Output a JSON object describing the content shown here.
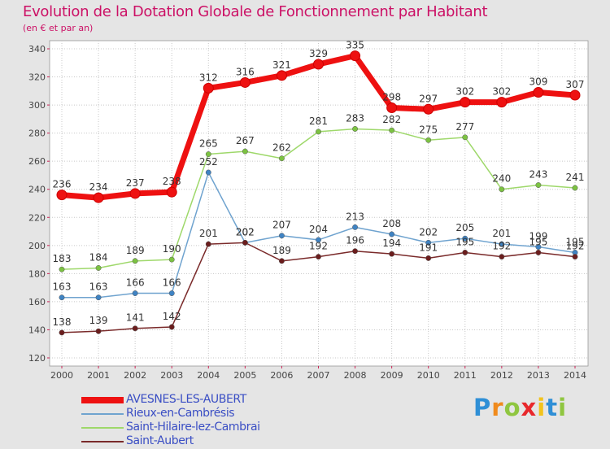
{
  "header": {
    "title": "Evolution de la Dotation Globale de Fonctionnement par Habitant",
    "subtitle": "(en € et par an)"
  },
  "brand": {
    "letters": [
      "P",
      "r",
      "o",
      "x",
      "i",
      "t",
      "i"
    ]
  },
  "chart_data": {
    "type": "line",
    "title": "Evolution de la Dotation Globale de Fonctionnement par Habitant",
    "subtitle": "(en € et par an)",
    "xlabel": "",
    "ylabel": "",
    "categories": [
      "2000",
      "2001",
      "2002",
      "2003",
      "2004",
      "2005",
      "2006",
      "2007",
      "2008",
      "2009",
      "2010",
      "2011",
      "2012",
      "2013",
      "2014"
    ],
    "yticks": [
      120,
      140,
      160,
      180,
      200,
      220,
      240,
      260,
      280,
      300,
      320,
      340
    ],
    "ylim": [
      120,
      340
    ],
    "grid": true,
    "legend_position": "bottom-left",
    "series": [
      {
        "name": "AVESNES-LES-AUBERT",
        "color": "#ee1111",
        "point_color": "#ee1111",
        "emphasis": "thick",
        "values": [
          236,
          234,
          237,
          238,
          312,
          316,
          321,
          329,
          335,
          298,
          297,
          302,
          302,
          309,
          307
        ]
      },
      {
        "name": "Rieux-en-Cambrésis",
        "color": "#6fa3cf",
        "point_color": "#3f83c3",
        "values": [
          163,
          163,
          166,
          166,
          252,
          202,
          207,
          204,
          213,
          208,
          202,
          205,
          201,
          199,
          195
        ]
      },
      {
        "name": "Saint-Hilaire-lez-Cambrai",
        "color": "#9ed86a",
        "point_color": "#7cc242",
        "values": [
          183,
          184,
          189,
          190,
          265,
          267,
          262,
          281,
          283,
          282,
          275,
          277,
          240,
          243,
          241
        ]
      },
      {
        "name": "Saint-Aubert",
        "color": "#7a2a2a",
        "point_color": "#6b1d1d",
        "values": [
          138,
          139,
          141,
          142,
          201,
          202,
          189,
          192,
          196,
          194,
          191,
          195,
          192,
          195,
          192
        ]
      }
    ]
  }
}
